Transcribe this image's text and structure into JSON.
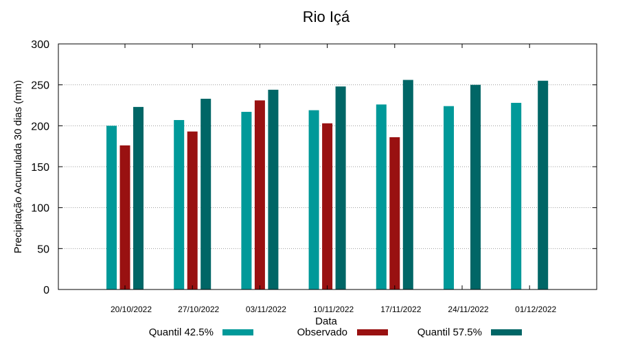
{
  "chart_data": {
    "type": "bar",
    "title": "Rio Içá",
    "xlabel": "Data",
    "ylabel": "Precipitação Acumulada 30 dias (mm)",
    "ylim": [
      0,
      300
    ],
    "yticks": [
      0,
      50,
      100,
      150,
      200,
      250,
      300
    ],
    "grid": true,
    "legend_position": "bottom",
    "categories": [
      "20/10/2022",
      "27/10/2022",
      "03/11/2022",
      "10/11/2022",
      "17/11/2022",
      "24/11/2022",
      "01/12/2022"
    ],
    "series": [
      {
        "name": "Quantil 42.5%",
        "color": "#009999",
        "values": [
          200,
          207,
          217,
          219,
          226,
          224,
          228
        ]
      },
      {
        "name": "Observado",
        "color": "#991111",
        "values": [
          176,
          193,
          231,
          203,
          186,
          null,
          null
        ]
      },
      {
        "name": "Quantil 57.5%",
        "color": "#006666",
        "values": [
          223,
          233,
          244,
          248,
          256,
          250,
          255
        ]
      }
    ]
  }
}
